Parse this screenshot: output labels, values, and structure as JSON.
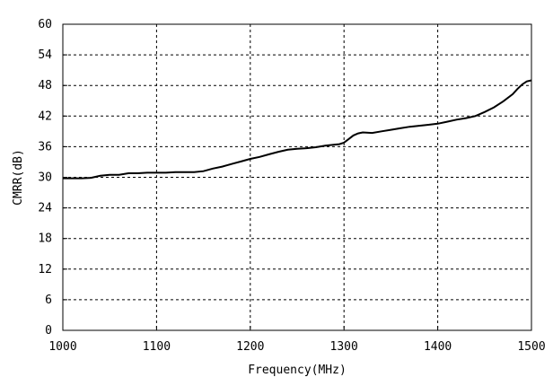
{
  "chart_data": {
    "type": "line",
    "xlabel": "Frequency(MHz)",
    "ylabel": "CMRR(dB)",
    "xlim": [
      1000,
      1500
    ],
    "ylim": [
      0,
      60
    ],
    "xticks": [
      1000,
      1100,
      1200,
      1300,
      1400,
      1500
    ],
    "yticks": [
      0,
      6,
      12,
      18,
      24,
      30,
      36,
      42,
      48,
      54,
      60
    ],
    "xtick_labels": [
      "1000",
      "1100",
      "1200",
      "1300",
      "1400",
      "1500"
    ],
    "ytick_labels": [
      "0",
      "6",
      "12",
      "18",
      "24",
      "30",
      "36",
      "42",
      "48",
      "54",
      "60"
    ],
    "grid": true,
    "line_color": "#000000",
    "series": [
      {
        "x": [
          1000,
          1010,
          1020,
          1030,
          1040,
          1050,
          1060,
          1070,
          1080,
          1090,
          1100,
          1110,
          1120,
          1130,
          1140,
          1150,
          1160,
          1170,
          1180,
          1190,
          1200,
          1210,
          1220,
          1230,
          1240,
          1250,
          1260,
          1270,
          1280,
          1290,
          1295,
          1300,
          1305,
          1310,
          1315,
          1320,
          1330,
          1340,
          1350,
          1360,
          1370,
          1380,
          1390,
          1400,
          1410,
          1420,
          1430,
          1440,
          1450,
          1460,
          1470,
          1480,
          1485,
          1490,
          1495,
          1500
        ],
        "values": [
          29.8,
          29.8,
          29.8,
          29.9,
          30.3,
          30.5,
          30.5,
          30.8,
          30.8,
          30.9,
          30.9,
          30.9,
          31.0,
          31.0,
          31.0,
          31.2,
          31.7,
          32.1,
          32.6,
          33.1,
          33.6,
          34.0,
          34.5,
          35.0,
          35.4,
          35.6,
          35.7,
          35.9,
          36.2,
          36.4,
          36.5,
          36.8,
          37.5,
          38.2,
          38.6,
          38.8,
          38.7,
          39.0,
          39.3,
          39.6,
          39.9,
          40.1,
          40.3,
          40.5,
          40.9,
          41.3,
          41.6,
          42.0,
          42.8,
          43.7,
          44.9,
          46.3,
          47.3,
          48.2,
          48.8,
          49.0
        ]
      }
    ]
  }
}
